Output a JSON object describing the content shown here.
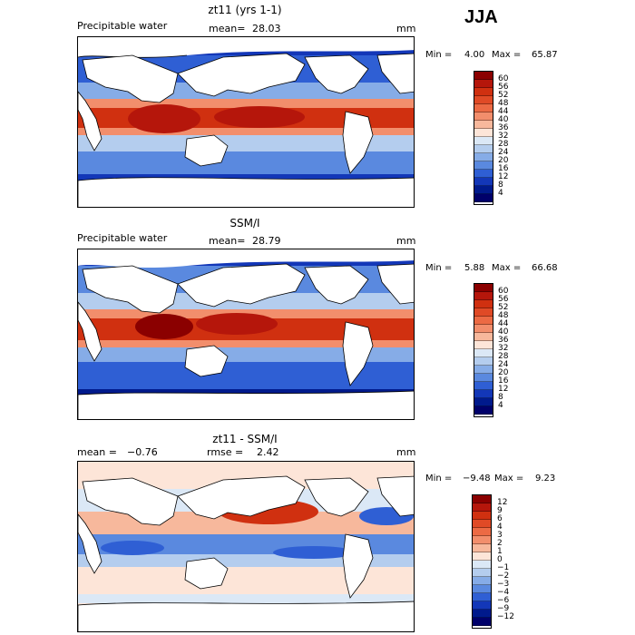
{
  "season": "JJA",
  "panels": [
    {
      "title": "zt11 (yrs 1-1)",
      "left_label": "Precipitable water",
      "stat_label": "mean=",
      "stat_value": "28.03",
      "units": "mm",
      "min_text": "Min =",
      "min_value": "4.00",
      "max_text": "Max =",
      "max_value": "65.87",
      "colorbar_labels": [
        "60",
        "56",
        "52",
        "48",
        "44",
        "40",
        "36",
        "32",
        "28",
        "24",
        "20",
        "16",
        "12",
        "8",
        "4"
      ]
    },
    {
      "title": "SSM/I",
      "left_label": "Precipitable water",
      "stat_label": "mean=",
      "stat_value": "28.79",
      "units": "mm",
      "min_text": "Min =",
      "min_value": "5.88",
      "max_text": "Max =",
      "max_value": "66.68",
      "colorbar_labels": [
        "60",
        "56",
        "52",
        "48",
        "44",
        "40",
        "36",
        "32",
        "28",
        "24",
        "20",
        "16",
        "12",
        "8",
        "4"
      ]
    },
    {
      "title": "zt11 - SSM/I",
      "left_label": "mean =",
      "left_value": "−0.76",
      "stat_label": "rmse =",
      "stat_value": "2.42",
      "units": "mm",
      "min_text": "Min =",
      "min_value": "−9.48",
      "max_text": "Max =",
      "max_value": "9.23",
      "colorbar_labels": [
        "12",
        "9",
        "6",
        "4",
        "3",
        "2",
        "1",
        "0",
        "−1",
        "−2",
        "−3",
        "−4",
        "−6",
        "−9",
        "−12"
      ]
    }
  ],
  "colors": {
    "pw_scale": [
      "#8b0000",
      "#b5160b",
      "#d03010",
      "#e04a26",
      "#ec6a44",
      "#f28e6c",
      "#f7b89c",
      "#fde5d8",
      "#dbe8f6",
      "#b4cdee",
      "#86ace7",
      "#5a89df",
      "#2f5fd4",
      "#1337b8",
      "#001a8c",
      "#00006a"
    ],
    "diff_scale": [
      "#8b0000",
      "#b5160b",
      "#d03010",
      "#e04a26",
      "#ec6a44",
      "#f28e6c",
      "#f7b89c",
      "#fde5d8",
      "#dbe8f6",
      "#b4cdee",
      "#86ace7",
      "#5a89df",
      "#2f5fd4",
      "#1337b8",
      "#001a8c",
      "#00006a"
    ],
    "land": "#ffffff"
  }
}
